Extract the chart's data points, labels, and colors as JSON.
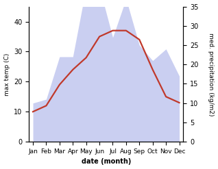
{
  "months": [
    "Jan",
    "Feb",
    "Mar",
    "Apr",
    "May",
    "Jun",
    "Jul",
    "Aug",
    "Sep",
    "Oct",
    "Nov",
    "Dec"
  ],
  "month_indices": [
    0,
    1,
    2,
    3,
    4,
    5,
    6,
    7,
    8,
    9,
    10,
    11
  ],
  "temperature": [
    10,
    12,
    19,
    24,
    28,
    35,
    37,
    37,
    34,
    24,
    15,
    13
  ],
  "precipitation": [
    10,
    11,
    22,
    22,
    40,
    40,
    27,
    37,
    25,
    21,
    24,
    17
  ],
  "temp_color": "#c0392b",
  "precip_fill_color": "#c5caf0",
  "temp_ylim": [
    0,
    45
  ],
  "precip_ylim": [
    0,
    35
  ],
  "temp_yticks": [
    0,
    10,
    20,
    30,
    40
  ],
  "precip_yticks": [
    0,
    5,
    10,
    15,
    20,
    25,
    30,
    35
  ],
  "xlabel": "date (month)",
  "ylabel_left": "max temp (C)",
  "ylabel_right": "med. precipitation (kg/m2)",
  "background_color": "#ffffff",
  "temp_linewidth": 1.6,
  "label_fontsize": 6.5,
  "tick_fontsize": 7
}
